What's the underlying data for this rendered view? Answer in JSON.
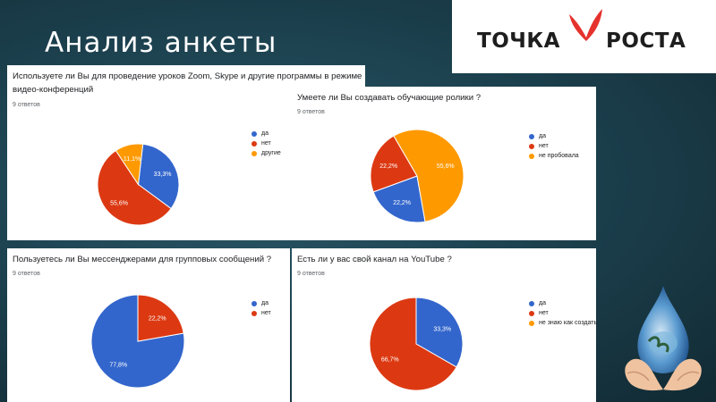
{
  "slide": {
    "title": "Анализ анкеты"
  },
  "logo": {
    "left_text": "ТОЧКА",
    "right_text": "РОСТА"
  },
  "colors": {
    "blue": "#3366cc",
    "red": "#dc3912",
    "orange": "#ff9900"
  },
  "chart_data": [
    {
      "type": "pie",
      "title": "Используете ли Вы для проведение уроков Zoom, Skype и другие программы в режиме видео-конференций",
      "responses": "9 ответов",
      "series": [
        {
          "name": "да",
          "value": 33.3,
          "label": "33,3%",
          "color": "#3366cc"
        },
        {
          "name": "нет",
          "value": 55.6,
          "label": "55,6%",
          "color": "#dc3912"
        },
        {
          "name": "другие",
          "value": 11.1,
          "label": "11,1%",
          "color": "#ff9900"
        }
      ]
    },
    {
      "type": "pie",
      "title": "Умеете ли Вы создавать обучающие ролики ?",
      "responses": "9 ответов",
      "series": [
        {
          "name": "да",
          "value": 22.2,
          "label": "22,2%",
          "color": "#3366cc"
        },
        {
          "name": "нет",
          "value": 22.2,
          "label": "22,2%",
          "color": "#dc3912"
        },
        {
          "name": "не пробовала",
          "value": 55.6,
          "label": "55,6%",
          "color": "#ff9900"
        }
      ]
    },
    {
      "type": "pie",
      "title": "Пользуетесь ли Вы мессенджерами для групповых сообщений ?",
      "responses": "9 ответов",
      "series": [
        {
          "name": "да",
          "value": 77.8,
          "label": "77,8%",
          "color": "#3366cc"
        },
        {
          "name": "нет",
          "value": 22.2,
          "label": "22,2%",
          "color": "#dc3912"
        }
      ]
    },
    {
      "type": "pie",
      "title": "Есть ли у вас свой канал на YouTube ?",
      "responses": "9 ответов",
      "series": [
        {
          "name": "да",
          "value": 33.3,
          "label": "33,3%",
          "color": "#3366cc"
        },
        {
          "name": "нет",
          "value": 66.7,
          "label": "66,7%",
          "color": "#dc3912"
        },
        {
          "name": "не знаю как создать",
          "value": 0,
          "label": "",
          "color": "#ff9900"
        }
      ]
    }
  ]
}
